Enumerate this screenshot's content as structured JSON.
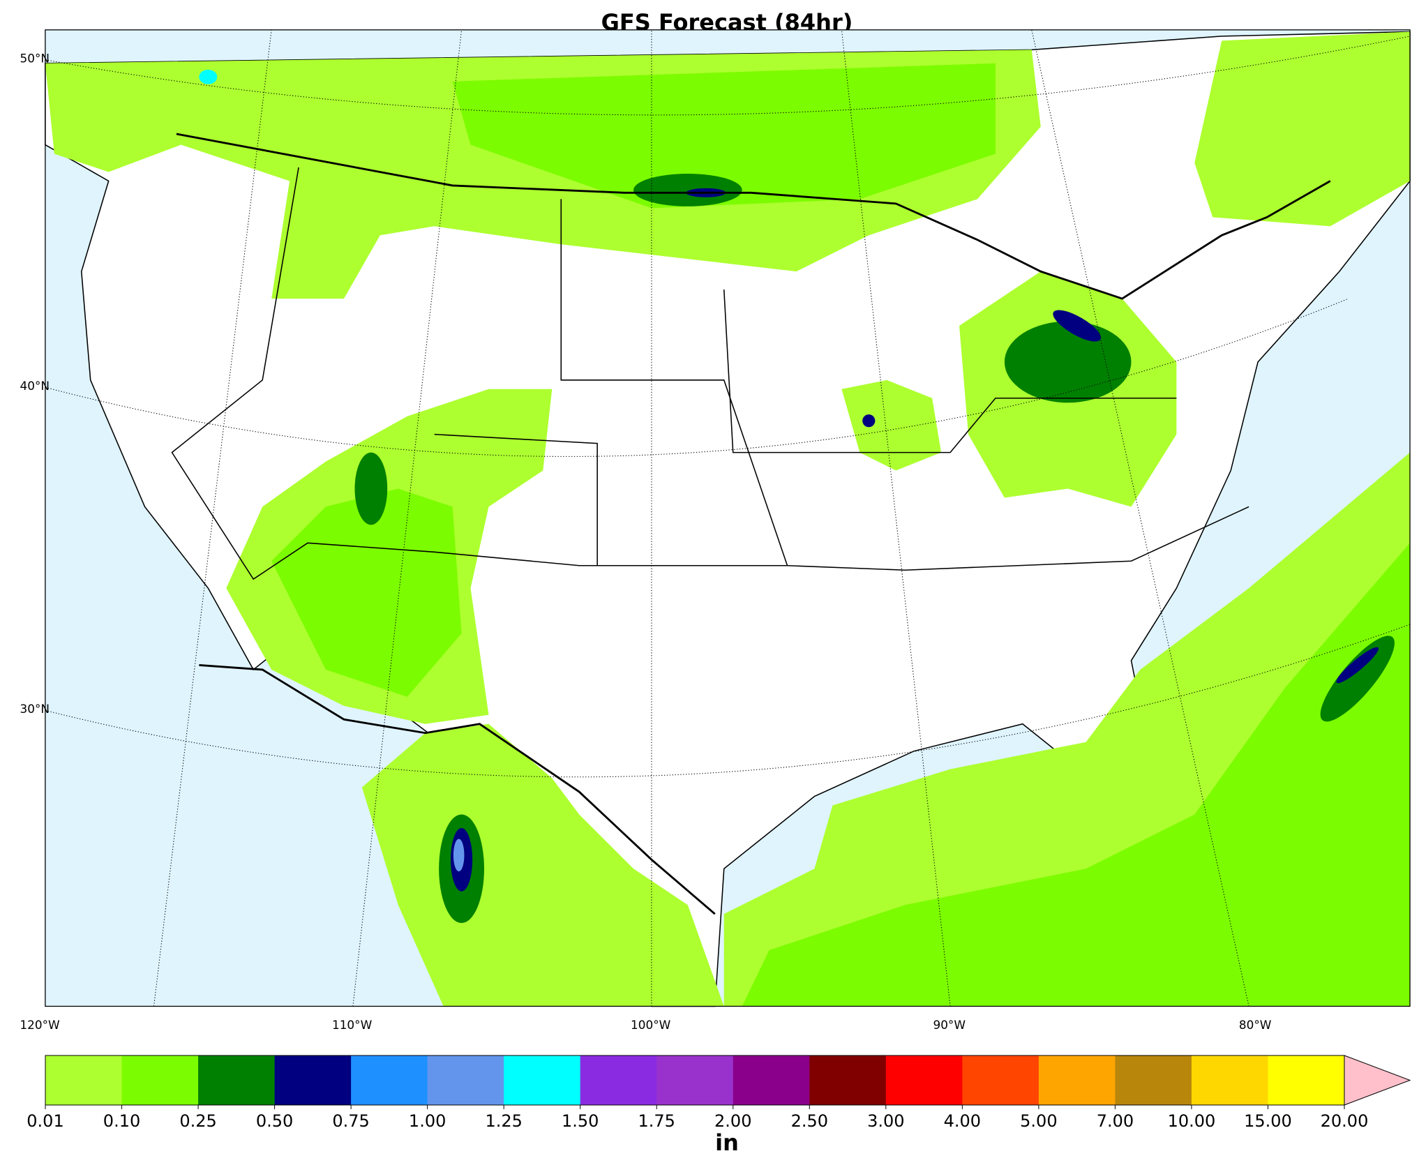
{
  "title": "GFS Forecast (84hr)",
  "map": {
    "lat_labels": [
      "50°N",
      "40°N",
      "30°N"
    ],
    "lon_labels": [
      "120°W",
      "110°W",
      "100°W",
      "90°W",
      "80°W"
    ]
  },
  "colorbar": {
    "unit": "in",
    "levels": [
      0.01,
      {
        "value": 0.1,
        "label": "0.10"
      },
      0.25,
      {
        "value": 0.5,
        "label": "0.50"
      },
      0.75,
      {
        "value": 1,
        "label": "1.00"
      },
      1.25,
      {
        "value": 1.5,
        "label": "1.50"
      },
      1.75,
      {
        "value": 2,
        "label": "2.00"
      },
      {
        "value": 2.5,
        "label": "2.50"
      },
      {
        "value": 3,
        "label": "3.00"
      },
      {
        "value": 4,
        "label": "4.00"
      },
      {
        "value": 5,
        "label": "5.00"
      },
      {
        "value": 7,
        "label": "7.00"
      },
      {
        "value": 10,
        "label": "10.00"
      },
      {
        "value": 15,
        "label": "15.00"
      },
      {
        "value": 20,
        "label": "20.00"
      }
    ],
    "colors": [
      "#adff2f",
      "#7cfc00",
      "#008000",
      "#000080",
      "#1e90ff",
      "#6495ed",
      "#00ffff",
      "#8a2be2",
      "#9932cc",
      "#8b008b",
      "#800000",
      "#ff0000",
      "#ff4500",
      "#ffa500",
      "#b8860b",
      "#ffd700",
      "#ffff00"
    ],
    "extend_color": "#ffc0cb"
  }
}
